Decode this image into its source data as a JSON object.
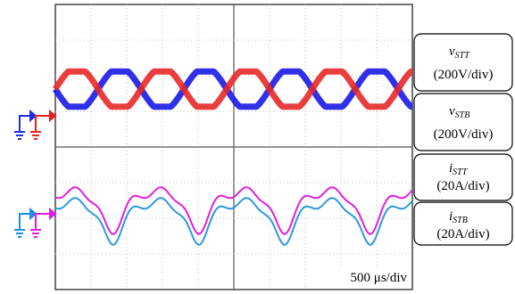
{
  "labels": [
    {
      "symbol": "v",
      "subscript": "STT",
      "scale": "(200V/div)"
    },
    {
      "symbol": "v",
      "subscript": "STB",
      "scale": "(200V/div)"
    },
    {
      "symbol": "i",
      "subscript": "STT",
      "scale": "(20A/div)"
    },
    {
      "symbol": "i",
      "subscript": "STB",
      "scale": "(20A/div)"
    }
  ],
  "timebase": "500 μs/div"
}
